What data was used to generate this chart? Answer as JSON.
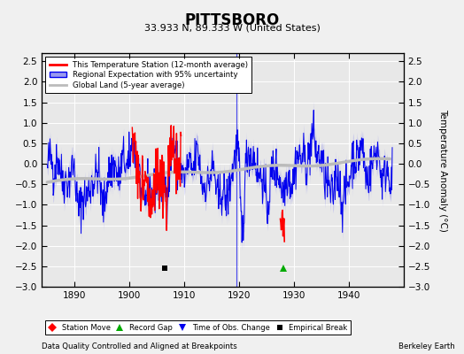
{
  "title": "PITTSBORO",
  "subtitle": "33.933 N, 89.333 W (United States)",
  "ylabel": "Temperature Anomaly (°C)",
  "xlabel_note": "Data Quality Controlled and Aligned at Breakpoints",
  "source_note": "Berkeley Earth",
  "xlim": [
    1884,
    1950
  ],
  "ylim": [
    -3.0,
    2.7
  ],
  "yticks": [
    -3,
    -2.5,
    -2,
    -1.5,
    -1,
    -0.5,
    0,
    0.5,
    1,
    1.5,
    2,
    2.5
  ],
  "xticks": [
    1890,
    1900,
    1910,
    1920,
    1930,
    1940
  ],
  "bg_color": "#e8e8e8",
  "grid_color": "#ffffff",
  "regional_color": "#0000ee",
  "regional_fill_color": "#9999ee",
  "station_color": "#ff0000",
  "global_color": "#bbbbbb",
  "marker_y": -2.55,
  "empirical_break_x": 1906.5,
  "record_gap_x": 1928.0,
  "time_obs_x": 1919.5,
  "station_move_x": null,
  "fig_bg": "#f0f0f0"
}
